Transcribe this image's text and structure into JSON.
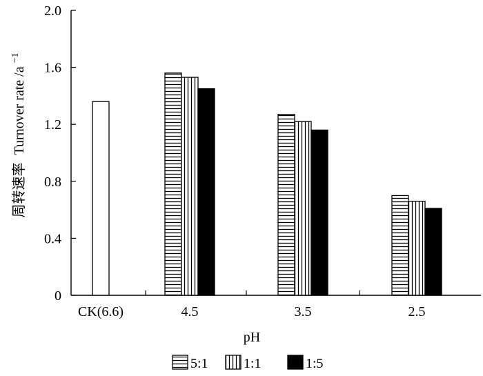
{
  "chart_data": {
    "type": "bar",
    "xlabel": "pH",
    "ylabel_cn": "周转速率",
    "ylabel_en": "Turnover rate",
    "ylabel_unit": "/a",
    "ylabel_unit_sup": "−1",
    "ylim": [
      0,
      2.0
    ],
    "yticks": [
      "0",
      "0.4",
      "0.8",
      "1.2",
      "1.6",
      "2.0"
    ],
    "ytick_values": [
      0,
      0.4,
      0.8,
      1.2,
      1.6,
      2.0
    ],
    "categories": [
      "CK(6.6)",
      "4.5",
      "3.5",
      "2.5"
    ],
    "control": {
      "category": "CK(6.6)",
      "value": 1.36,
      "fill": "white"
    },
    "series": [
      {
        "name": "5:1",
        "pattern": "horizontal-stripes",
        "values": [
          null,
          1.56,
          1.27,
          0.7
        ]
      },
      {
        "name": "1:1",
        "pattern": "vertical-stripes",
        "values": [
          null,
          1.53,
          1.22,
          0.66
        ]
      },
      {
        "name": "1:5",
        "pattern": "solid-black",
        "values": [
          null,
          1.45,
          1.16,
          0.61
        ]
      }
    ],
    "legend_position": "bottom",
    "grid": false
  }
}
